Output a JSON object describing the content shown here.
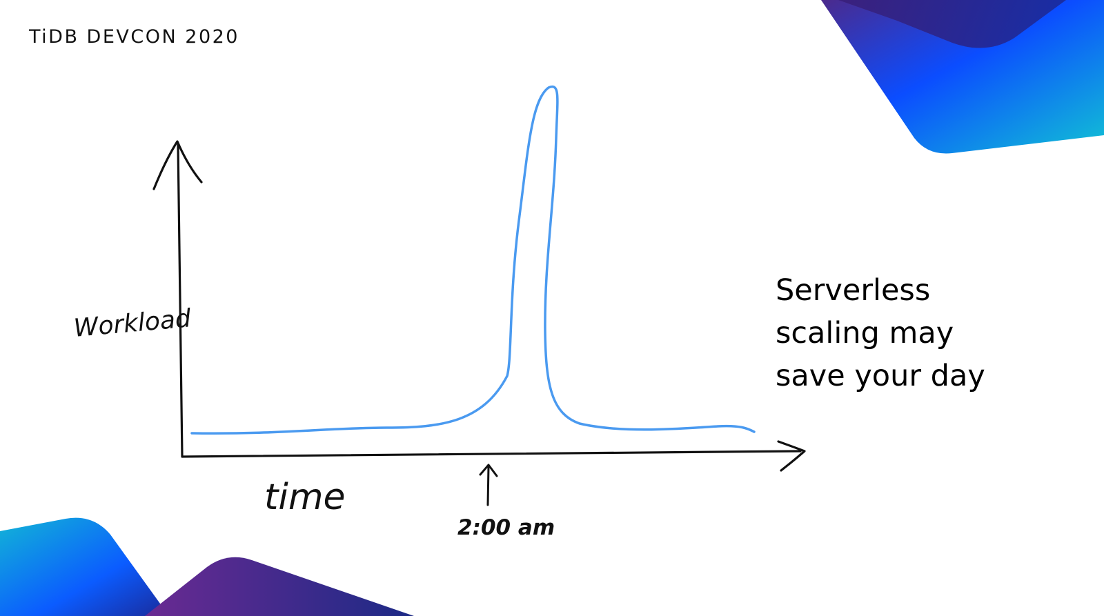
{
  "header": {
    "brand": "TiDB DEVCON 2020"
  },
  "diagram": {
    "y_axis_label": "Workload",
    "x_axis_label": "time",
    "marker_label": "2:00 am"
  },
  "tagline": {
    "lines": [
      "Serverless",
      "scaling may",
      "save your day"
    ]
  },
  "colors": {
    "curve": "#4a9af0",
    "axes": "#111111",
    "accent_blue": "#0b5cff",
    "accent_purple": "#5b2a8e",
    "accent_teal": "#12b5d6"
  }
}
